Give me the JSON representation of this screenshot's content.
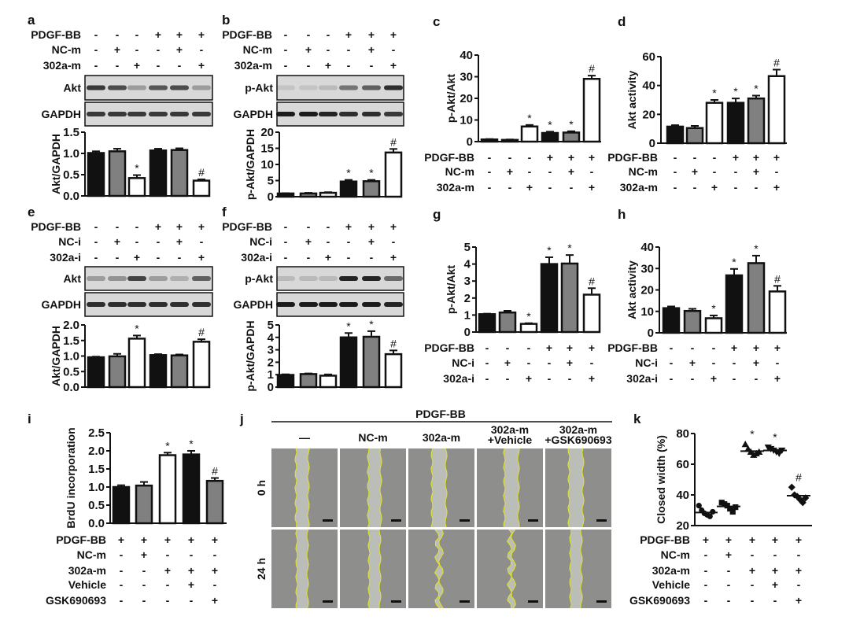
{
  "chart_data": [
    {
      "panel": "a",
      "type": "bar",
      "ylabel": "Akt/GAPDH",
      "ylim": [
        0,
        1.5
      ],
      "yticks": [
        "0.0",
        "0.5",
        "1.0",
        "1.5"
      ],
      "treatments": [
        {
          "name": "PDGF-BB",
          "signs": [
            "-",
            "-",
            "-",
            "+",
            "+",
            "+"
          ]
        },
        {
          "name": "NC-m",
          "signs": [
            "-",
            "+",
            "-",
            "-",
            "+",
            "-"
          ]
        },
        {
          "name": "302a-m",
          "signs": [
            "-",
            "-",
            "+",
            "-",
            "-",
            "+"
          ]
        }
      ],
      "blots": [
        {
          "label": "Akt",
          "intensity": [
            0.8,
            0.7,
            0.3,
            0.65,
            0.7,
            0.3
          ]
        },
        {
          "label": "GAPDH",
          "intensity": [
            0.8,
            0.8,
            0.8,
            0.8,
            0.8,
            0.8
          ]
        }
      ],
      "values": [
        1.01,
        1.05,
        0.42,
        1.07,
        1.08,
        0.36
      ],
      "errors": [
        0.04,
        0.06,
        0.07,
        0.04,
        0.04,
        0.03
      ],
      "fills": [
        "#111111",
        "#808080",
        "#ffffff",
        "#111111",
        "#808080",
        "#ffffff"
      ],
      "annotations": [
        "",
        "",
        "*",
        "",
        "",
        "#"
      ]
    },
    {
      "panel": "b",
      "type": "bar",
      "ylabel": "p-Akt/GAPDH",
      "ylim": [
        0,
        20
      ],
      "yticks": [
        "0",
        "5",
        "10",
        "15",
        "20"
      ],
      "treatments": [
        {
          "name": "PDGF-BB",
          "signs": [
            "-",
            "-",
            "-",
            "+",
            "+",
            "+"
          ]
        },
        {
          "name": "NC-m",
          "signs": [
            "-",
            "+",
            "-",
            "-",
            "+",
            "-"
          ]
        },
        {
          "name": "302a-m",
          "signs": [
            "-",
            "-",
            "+",
            "-",
            "-",
            "+"
          ]
        }
      ],
      "blots": [
        {
          "label": "p-Akt",
          "intensity": [
            0.1,
            0.1,
            0.15,
            0.5,
            0.6,
            0.85
          ]
        },
        {
          "label": "GAPDH",
          "intensity": [
            0.95,
            0.95,
            0.9,
            0.85,
            0.85,
            0.8
          ]
        }
      ],
      "values": [
        1.0,
        1.0,
        1.2,
        4.7,
        4.8,
        13.7
      ],
      "errors": [
        0.1,
        0.2,
        0.2,
        0.5,
        0.4,
        1.1
      ],
      "fills": [
        "#111111",
        "#808080",
        "#ffffff",
        "#111111",
        "#808080",
        "#ffffff"
      ],
      "annotations": [
        "",
        "",
        "",
        "*",
        "*",
        "#"
      ]
    },
    {
      "panel": "c",
      "type": "bar",
      "ylabel": "p-Akt/Akt",
      "ylim": [
        0,
        40
      ],
      "yticks": [
        "0",
        "10",
        "20",
        "30",
        "40"
      ],
      "treatments": [
        {
          "name": "PDGF-BB",
          "signs": [
            "-",
            "-",
            "-",
            "+",
            "+",
            "+"
          ]
        },
        {
          "name": "NC-m",
          "signs": [
            "-",
            "+",
            "-",
            "-",
            "+",
            "-"
          ]
        },
        {
          "name": "302a-m",
          "signs": [
            "-",
            "-",
            "+",
            "-",
            "-",
            "+"
          ]
        }
      ],
      "values": [
        1.0,
        0.8,
        7.0,
        4.0,
        4.2,
        29.0
      ],
      "errors": [
        0.2,
        0.2,
        0.7,
        0.6,
        0.6,
        1.5
      ],
      "fills": [
        "#111111",
        "#808080",
        "#ffffff",
        "#111111",
        "#808080",
        "#ffffff"
      ],
      "annotations": [
        "",
        "",
        "*",
        "*",
        "*",
        "#"
      ]
    },
    {
      "panel": "d",
      "type": "bar",
      "ylabel": "Akt activity",
      "ylim": [
        0,
        60
      ],
      "yticks": [
        "0",
        "20",
        "40",
        "60"
      ],
      "treatments": [
        {
          "name": "PDGF-BB",
          "signs": [
            "-",
            "-",
            "-",
            "+",
            "+",
            "+"
          ]
        },
        {
          "name": "NC-m",
          "signs": [
            "-",
            "+",
            "-",
            "-",
            "+",
            "-"
          ]
        },
        {
          "name": "302a-m",
          "signs": [
            "-",
            "-",
            "+",
            "-",
            "-",
            "+"
          ]
        }
      ],
      "values": [
        11.5,
        10.5,
        28.0,
        28.0,
        31.0,
        46.5
      ],
      "errors": [
        1.0,
        1.5,
        2.0,
        3.0,
        2.0,
        4.5
      ],
      "fills": [
        "#111111",
        "#808080",
        "#ffffff",
        "#111111",
        "#808080",
        "#ffffff"
      ],
      "annotations": [
        "",
        "",
        "*",
        "*",
        "*",
        "#"
      ]
    },
    {
      "panel": "e",
      "type": "bar",
      "ylabel": "Akt/GAPDH",
      "ylim": [
        0,
        2
      ],
      "yticks": [
        "0.0",
        "0.5",
        "1.0",
        "1.5",
        "2.0"
      ],
      "treatments": [
        {
          "name": "PDGF-BB",
          "signs": [
            "-",
            "-",
            "-",
            "+",
            "+",
            "+"
          ]
        },
        {
          "name": "NC-i",
          "signs": [
            "-",
            "+",
            "-",
            "-",
            "+",
            "-"
          ]
        },
        {
          "name": "302a-i",
          "signs": [
            "-",
            "-",
            "+",
            "-",
            "-",
            "+"
          ]
        }
      ],
      "blots": [
        {
          "label": "Akt",
          "intensity": [
            0.3,
            0.35,
            0.75,
            0.3,
            0.2,
            0.6
          ]
        },
        {
          "label": "GAPDH",
          "intensity": [
            0.85,
            0.85,
            0.85,
            0.85,
            0.85,
            0.85
          ]
        }
      ],
      "values": [
        0.96,
        0.99,
        1.56,
        1.03,
        1.02,
        1.46
      ],
      "errors": [
        0.02,
        0.08,
        0.1,
        0.03,
        0.03,
        0.08
      ],
      "fills": [
        "#111111",
        "#808080",
        "#ffffff",
        "#111111",
        "#808080",
        "#ffffff"
      ],
      "annotations": [
        "",
        "",
        "*",
        "",
        "",
        "#"
      ]
    },
    {
      "panel": "f",
      "type": "bar",
      "ylabel": "p-Akt/GAPDH",
      "ylim": [
        0,
        5
      ],
      "yticks": [
        "0",
        "1",
        "2",
        "3",
        "4",
        "5"
      ],
      "treatments": [
        {
          "name": "PDGF-BB",
          "signs": [
            "-",
            "-",
            "-",
            "+",
            "+",
            "+"
          ]
        },
        {
          "name": "NC-i",
          "signs": [
            "-",
            "+",
            "-",
            "-",
            "+",
            "-"
          ]
        },
        {
          "name": "302a-i",
          "signs": [
            "-",
            "-",
            "+",
            "-",
            "-",
            "+"
          ]
        }
      ],
      "blots": [
        {
          "label": "p-Akt",
          "intensity": [
            0.15,
            0.15,
            0.15,
            0.9,
            0.9,
            0.55
          ]
        },
        {
          "label": "GAPDH",
          "intensity": [
            0.95,
            0.95,
            0.95,
            0.95,
            0.95,
            0.9
          ]
        }
      ],
      "values": [
        0.98,
        1.05,
        0.92,
        4.0,
        4.05,
        2.65
      ],
      "errors": [
        0.05,
        0.05,
        0.1,
        0.35,
        0.45,
        0.3
      ],
      "fills": [
        "#111111",
        "#808080",
        "#ffffff",
        "#111111",
        "#808080",
        "#ffffff"
      ],
      "annotations": [
        "",
        "",
        "",
        "*",
        "*",
        "#"
      ]
    },
    {
      "panel": "g",
      "type": "bar",
      "ylabel": "p-Akt/Akt",
      "ylim": [
        0,
        5
      ],
      "yticks": [
        "0",
        "1",
        "2",
        "3",
        "4",
        "5"
      ],
      "treatments": [
        {
          "name": "PDGF-BB",
          "signs": [
            "-",
            "-",
            "-",
            "+",
            "+",
            "+"
          ]
        },
        {
          "name": "NC-i",
          "signs": [
            "-",
            "+",
            "-",
            "-",
            "+",
            "-"
          ]
        },
        {
          "name": "302a-i",
          "signs": [
            "-",
            "-",
            "+",
            "-",
            "-",
            "+"
          ]
        }
      ],
      "values": [
        1.05,
        1.15,
        0.48,
        4.0,
        4.03,
        2.2
      ],
      "errors": [
        0.03,
        0.1,
        0.04,
        0.4,
        0.5,
        0.38
      ],
      "fills": [
        "#111111",
        "#808080",
        "#ffffff",
        "#111111",
        "#808080",
        "#ffffff"
      ],
      "annotations": [
        "",
        "",
        "*",
        "*",
        "*",
        "#"
      ]
    },
    {
      "panel": "h",
      "type": "bar",
      "ylabel": "Akt activity",
      "ylim": [
        0,
        40
      ],
      "yticks": [
        "0",
        "10",
        "20",
        "30",
        "40"
      ],
      "treatments": [
        {
          "name": "PDGF-BB",
          "signs": [
            "-",
            "-",
            "-",
            "+",
            "+",
            "+"
          ]
        },
        {
          "name": "NC-i",
          "signs": [
            "-",
            "+",
            "-",
            "-",
            "+",
            "-"
          ]
        },
        {
          "name": "302a-i",
          "signs": [
            "-",
            "-",
            "+",
            "-",
            "-",
            "+"
          ]
        }
      ],
      "values": [
        11.5,
        10.2,
        6.8,
        26.8,
        32.5,
        19.3
      ],
      "errors": [
        0.8,
        1.0,
        1.3,
        3.0,
        3.5,
        2.6
      ],
      "fills": [
        "#111111",
        "#808080",
        "#ffffff",
        "#111111",
        "#808080",
        "#ffffff"
      ],
      "annotations": [
        "",
        "",
        "*",
        "*",
        "*",
        "#"
      ]
    },
    {
      "panel": "i",
      "type": "bar",
      "ylabel": "BrdU incorporation",
      "ylim": [
        0,
        2.5
      ],
      "yticks": [
        "0.0",
        "0.5",
        "1.0",
        "1.5",
        "2.0",
        "2.5"
      ],
      "treatments": [
        {
          "name": "PDGF-BB",
          "signs": [
            "+",
            "+",
            "+",
            "+",
            "+"
          ]
        },
        {
          "name": "NC-m",
          "signs": [
            "-",
            "+",
            "-",
            "-",
            "-"
          ]
        },
        {
          "name": "302a-m",
          "signs": [
            "-",
            "-",
            "+",
            "+",
            "+"
          ]
        },
        {
          "name": "Vehicle",
          "signs": [
            "-",
            "-",
            "-",
            "+",
            "-"
          ]
        },
        {
          "name": "GSK690693",
          "signs": [
            "-",
            "-",
            "-",
            "-",
            "+"
          ]
        }
      ],
      "values": [
        1.0,
        1.04,
        1.88,
        1.9,
        1.17
      ],
      "errors": [
        0.05,
        0.1,
        0.07,
        0.1,
        0.08
      ],
      "fills": [
        "#111111",
        "#808080",
        "#ffffff",
        "#111111",
        "#808080"
      ],
      "annotations": [
        "",
        "",
        "*",
        "*",
        "#"
      ]
    },
    {
      "panel": "k",
      "type": "scatter",
      "ylabel": "Closed width (%)",
      "ylim": [
        20,
        80
      ],
      "yticks": [
        "20",
        "40",
        "60",
        "80"
      ],
      "treatments": [
        {
          "name": "PDGF-BB",
          "signs": [
            "+",
            "+",
            "+",
            "+",
            "+"
          ]
        },
        {
          "name": "NC-m",
          "signs": [
            "-",
            "+",
            "-",
            "-",
            "-"
          ]
        },
        {
          "name": "302a-m",
          "signs": [
            "-",
            "-",
            "+",
            "+",
            "+"
          ]
        },
        {
          "name": "Vehicle",
          "signs": [
            "-",
            "-",
            "-",
            "+",
            "-"
          ]
        },
        {
          "name": "GSK690693",
          "signs": [
            "-",
            "-",
            "-",
            "-",
            "+"
          ]
        }
      ],
      "points": [
        [
          33,
          30,
          28,
          27,
          26,
          29
        ],
        [
          35,
          34,
          33,
          31,
          29,
          32
        ],
        [
          73,
          70,
          68,
          66,
          67,
          68
        ],
        [
          71,
          70,
          69,
          68,
          67,
          69
        ],
        [
          45,
          40,
          39,
          37,
          35,
          38
        ]
      ],
      "means": [
        28.5,
        32.5,
        68.5,
        69.0,
        39.5
      ],
      "markers": [
        "circle",
        "square",
        "triangle-up",
        "triangle-down",
        "diamond"
      ],
      "annotations": [
        "",
        "",
        "*",
        "*",
        "#"
      ]
    }
  ],
  "wound_panel": {
    "panel": "j",
    "header": "PDGF-BB",
    "columns": [
      [
        "—"
      ],
      [
        "NC-m"
      ],
      [
        "302a-m"
      ],
      [
        "302a-m",
        "+Vehicle"
      ],
      [
        "302a-m",
        "+GSK690693"
      ]
    ],
    "rows": [
      "0 h",
      "24 h"
    ],
    "colors": {
      "cells": "#8e8f8d",
      "wound": "#babdb8",
      "edge": "#e6e61e"
    }
  }
}
